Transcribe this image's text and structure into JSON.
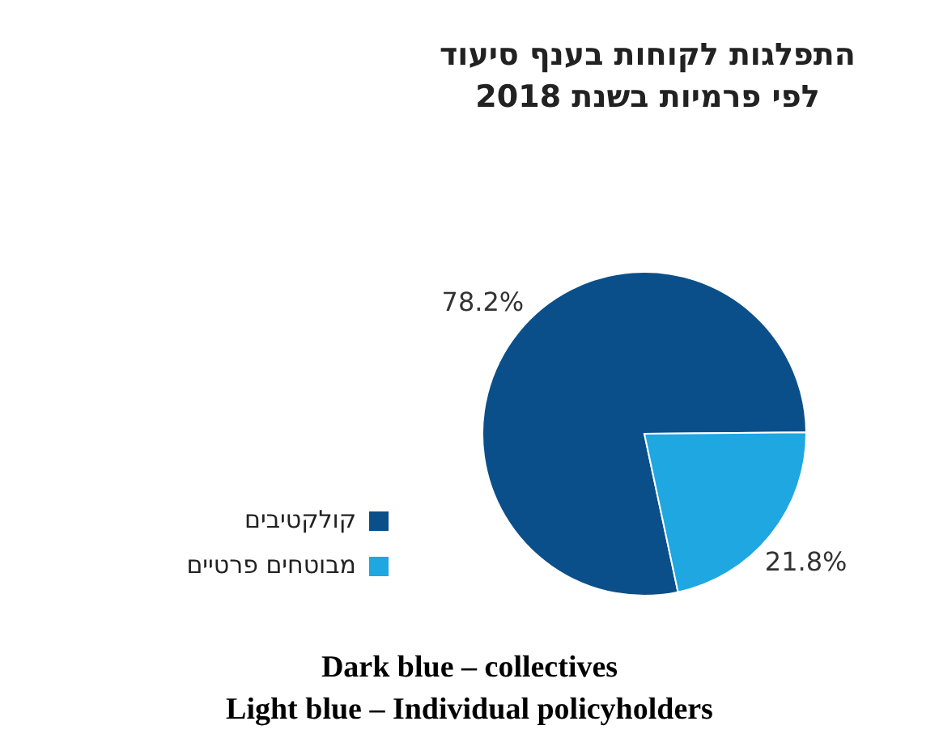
{
  "chart_data": {
    "type": "pie",
    "title": "התפלגות לקוחות בענף סיעוד\nלפי פרמיות בשנת 2018",
    "categories": [
      "קולקטיבים",
      "מבוטחים פרטיים"
    ],
    "values": [
      78.2,
      21.8
    ],
    "colors": [
      "#0b4f8a",
      "#1ea7e1"
    ],
    "value_labels": [
      "78.2%",
      "21.8%"
    ],
    "legend": "left",
    "annotations": [
      "Dark blue – collectives",
      "Light blue – Individual policyholders"
    ]
  }
}
